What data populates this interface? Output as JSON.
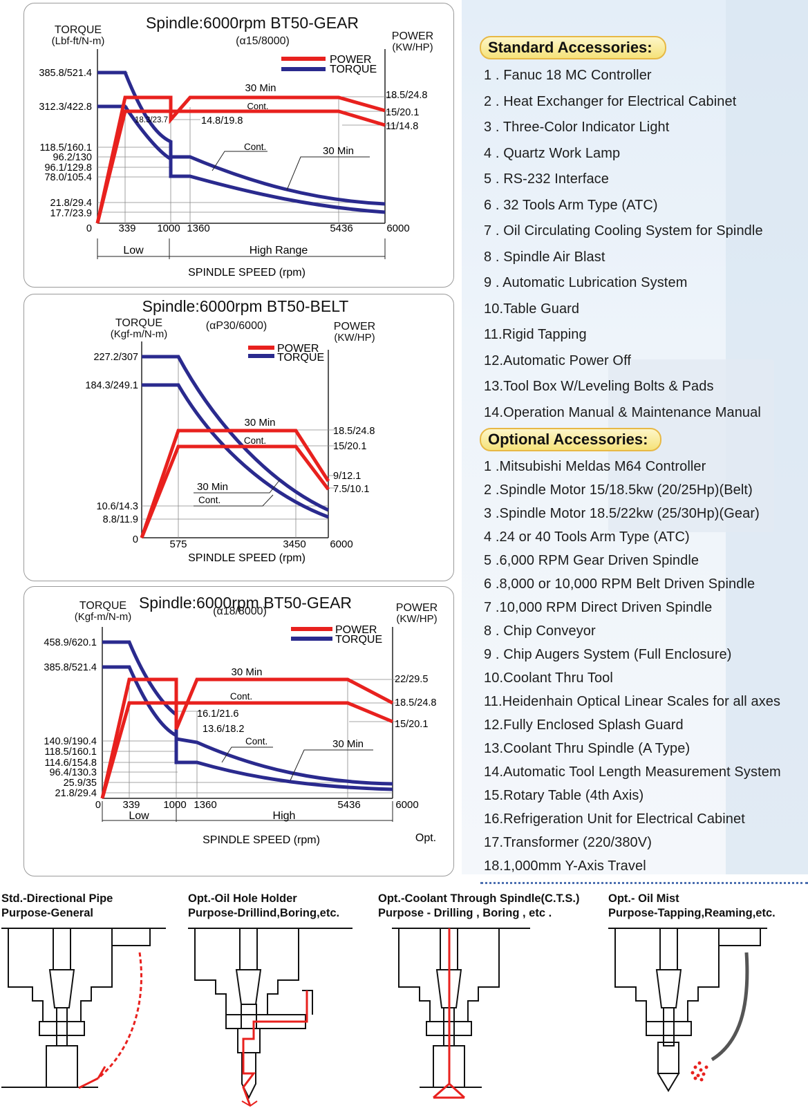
{
  "charts": [
    {
      "title": "Spindle:6000rpm BT50-GEAR",
      "subtitle": "(α15/8000)",
      "torque_label": [
        "TORQUE",
        "(Lbf-ft/N-m)"
      ],
      "power_label": [
        "POWER",
        "(KW/HP)"
      ],
      "legend": [
        "POWER",
        "TORQUE"
      ],
      "left_ticks": [
        "385.8/521.4",
        "312.3/422.8",
        "118.5/160.1",
        "96.2/130",
        "96.1/129.8",
        "78.0/105.4",
        "21.8/29.4",
        "17.7/23.9",
        "0"
      ],
      "right_ticks": [
        "18.5/24.8",
        "15/20.1",
        "11/14.8"
      ],
      "x_ticks": [
        "339",
        "1000",
        "1360",
        "5436",
        "6000"
      ],
      "inner_labels": [
        "30 Min",
        "Cont.",
        "18.3/23.7",
        "14.8/19.8",
        "Cont.",
        "30 Min"
      ],
      "ranges": [
        "Low",
        "High Range"
      ],
      "xlabel": "SPINDLE SPEED (rpm)"
    },
    {
      "title": "Spindle:6000rpm BT50-BELT",
      "subtitle": "(αP30/6000)",
      "torque_label": [
        "TORQUE",
        "(Kgf-m/N-m)"
      ],
      "power_label": [
        "POWER",
        "(KW/HP)"
      ],
      "legend": [
        "POWER",
        "TORQUE"
      ],
      "left_ticks": [
        "227.2/307",
        "184.3/249.1",
        "10.6/14.3",
        "8.8/11.9",
        "0"
      ],
      "right_ticks": [
        "18.5/24.8",
        "15/20.1",
        "9/12.1",
        "7.5/10.1"
      ],
      "x_ticks": [
        "575",
        "3450",
        "6000"
      ],
      "inner_labels": [
        "30 Min",
        "Cont.",
        "30 Min",
        "Cont."
      ],
      "xlabel": "SPINDLE SPEED (rpm)"
    },
    {
      "title": "Spindle:6000rpm BT50-GEAR",
      "subtitle": "(α18/8000)",
      "torque_label": [
        "TORQUE",
        "(Kgf-m/N-m)"
      ],
      "power_label": [
        "POWER",
        "(KW/HP)"
      ],
      "legend": [
        "POWER",
        "TORQUE"
      ],
      "left_ticks": [
        "458.9/620.1",
        "385.8/521.4",
        "140.9/190.4",
        "118.5/160.1",
        "114.6/154.8",
        "96.4/130.3",
        "25.9/35",
        "21.8/29.4",
        "0"
      ],
      "right_ticks": [
        "22/29.5",
        "18.5/24.8",
        "15/20.1"
      ],
      "x_ticks": [
        "339",
        "1000",
        "1360",
        "5436",
        "6000"
      ],
      "inner_labels": [
        "30 Min",
        "Cont.",
        "16.1/21.6",
        "13.6/18.2",
        "Cont.",
        "30 Min"
      ],
      "ranges": [
        "Low",
        "High"
      ],
      "xlabel": "SPINDLE SPEED (rpm)",
      "note": "Opt."
    }
  ],
  "standard": {
    "title": "Standard Accessories:",
    "items": [
      "1 . Fanuc 18 MC Controller",
      "2 . Heat Exchanger for Electrical Cabinet",
      "3 . Three-Color Indicator Light",
      "4 . Quartz Work Lamp",
      "5 . RS-232 Interface",
      "6 . 32 Tools Arm Type (ATC)",
      "7 . Oil Circulating Cooling System for Spindle",
      "8 . Spindle Air Blast",
      "9 . Automatic Lubrication System",
      "10.Table Guard",
      "11.Rigid Tapping",
      "12.Automatic Power Off",
      "13.Tool Box W/Leveling Bolts & Pads",
      "14.Operation Manual & Maintenance Manual"
    ]
  },
  "optional": {
    "title": "Optional Accessories:",
    "items": [
      "1 .Mitsubishi Meldas M64 Controller",
      "2 .Spindle Motor 15/18.5kw (20/25Hp)(Belt)",
      "3 .Spindle Motor 18.5/22kw (25/30Hp)(Gear)",
      "4 .24 or 40 Tools Arm Type (ATC)",
      "5 .6,000 RPM Gear Driven Spindle",
      "6 .8,000 or 10,000 RPM Belt Driven Spindle",
      "7 .10,000 RPM Direct Driven Spindle",
      "8 . Chip Conveyor",
      "9 . Chip Augers System (Full Enclosure)",
      "10.Coolant Thru Tool",
      "11.Heidenhain Optical Linear Scales for all axes",
      "12.Fully Enclosed Splash Guard",
      "13.Coolant Thru Spindle (A Type)",
      "14.Automatic Tool Length Measurement System",
      "15.Rotary Table (4th Axis)",
      "16.Refrigeration Unit for Electrical Cabinet",
      "17.Transformer (220/380V)",
      "18.1,000mm Y-Axis Travel"
    ]
  },
  "pipes": [
    {
      "line1": "Std.-Directional Pipe",
      "line2": "Purpose-General",
      "icon": "directional-pipe-diagram"
    },
    {
      "line1": "Opt.-Oil Hole Holder",
      "line2": "Purpose-Drillind,Boring,etc.",
      "icon": "oil-hole-holder-diagram"
    },
    {
      "line1": "Opt.-Coolant Through Spindle(C.T.S.)",
      "line2": "Purpose - Drilling , Boring , etc .",
      "icon": "coolant-through-spindle-diagram"
    },
    {
      "line1": "Opt.- Oil Mist",
      "line2": "Purpose-Tapping,Reaming,etc.",
      "icon": "oil-mist-diagram"
    }
  ],
  "colors": {
    "power": "#e8211e",
    "torque": "#2a2a8e",
    "accent_border": "#e7b845"
  }
}
